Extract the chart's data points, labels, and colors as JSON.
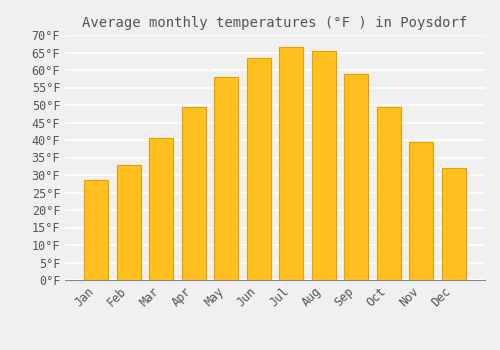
{
  "title": "Average monthly temperatures (°F ) in Poysdorf",
  "months": [
    "Jan",
    "Feb",
    "Mar",
    "Apr",
    "May",
    "Jun",
    "Jul",
    "Aug",
    "Sep",
    "Oct",
    "Nov",
    "Dec"
  ],
  "values": [
    28.5,
    33.0,
    40.5,
    49.5,
    58.0,
    63.5,
    66.5,
    65.5,
    59.0,
    49.5,
    39.5,
    32.0
  ],
  "bar_color": "#FFC020",
  "bar_edge_color": "#E8A000",
  "background_color": "#F0F0F0",
  "grid_color": "#FFFFFF",
  "text_color": "#555555",
  "ylim": [
    0,
    70
  ],
  "ytick_step": 5,
  "title_fontsize": 10,
  "tick_fontsize": 8.5
}
